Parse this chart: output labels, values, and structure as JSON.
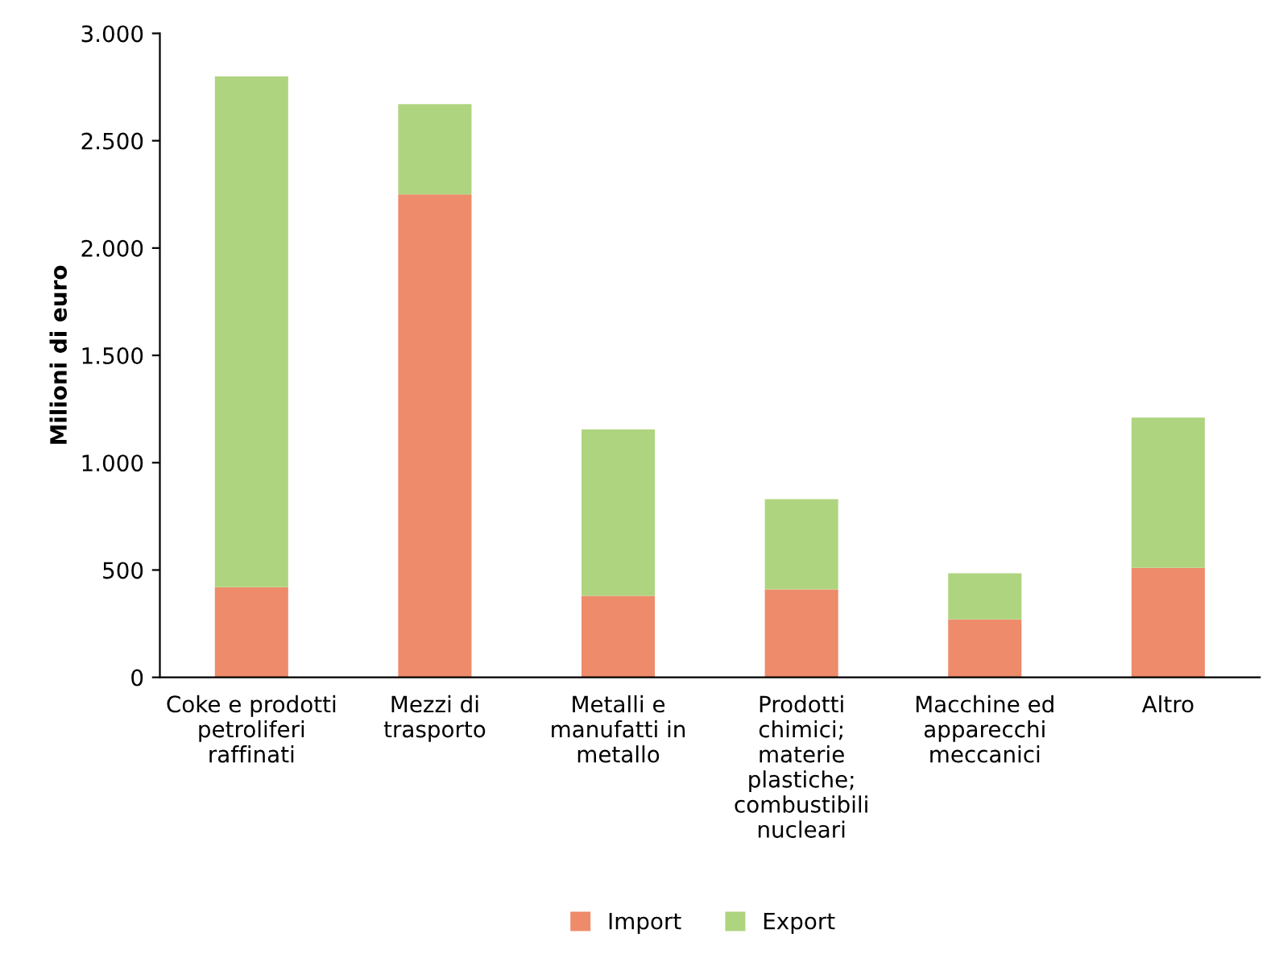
{
  "chart_data": {
    "type": "bar",
    "stacked": true,
    "ylabel": "Milioni di euro",
    "categories": [
      "Coke e prodotti\npetroliferi\nraffinati",
      "Mezzi di\ntrasporto",
      "Metalli e\nmanufatti in\nmetallo",
      "Prodotti\nchimici;\nmaterie\nplastiche;\ncombustibili\nnucleari",
      "Macchine ed\napparecchi\nmeccanici",
      "Altro"
    ],
    "series": [
      {
        "name": "Import",
        "color": "#ed8b6b",
        "values": [
          420,
          2250,
          380,
          410,
          270,
          510
        ]
      },
      {
        "name": "Export",
        "color": "#afd47f",
        "values": [
          2380,
          420,
          775,
          420,
          215,
          700
        ]
      }
    ],
    "ylim": [
      0,
      3000
    ],
    "yticks": [
      {
        "value": 0,
        "label": "0"
      },
      {
        "value": 500,
        "label": "500"
      },
      {
        "value": 1000,
        "label": "1.000"
      },
      {
        "value": 1500,
        "label": "1.500"
      },
      {
        "value": 2000,
        "label": "2.000"
      },
      {
        "value": 2500,
        "label": "2.500"
      },
      {
        "value": 3000,
        "label": "3.000"
      }
    ],
    "grid": false,
    "legend": "bottom"
  }
}
